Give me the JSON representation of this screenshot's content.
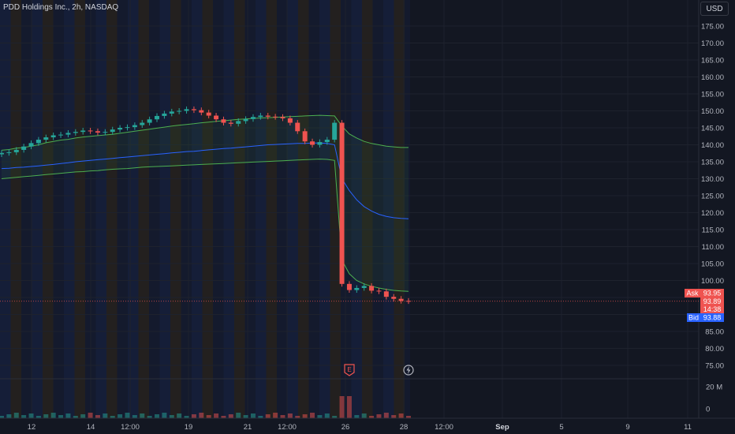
{
  "header": {
    "title": "PDD Holdings Inc., 2h, NASDAQ",
    "currency": "USD"
  },
  "price_tags": {
    "ask_label": "Ask",
    "ask_value": "93.95",
    "last_value": "93.89",
    "last_countdown": "14:38",
    "bid_label": "Bid",
    "bid_value": "93.88"
  },
  "markers": {
    "earnings_label": "E",
    "dividend_icon": "lightning-icon"
  },
  "colors": {
    "background": "#131722",
    "up": "#26a69a",
    "down": "#ef5350",
    "band_outer": "#4caf50",
    "band_mid": "#2962ff",
    "ask": "#ef5350",
    "bid": "#2962ff"
  },
  "chart_data": {
    "type": "candlestick",
    "symbol": "PDD Holdings Inc.",
    "interval": "2h",
    "exchange": "NASDAQ",
    "currency": "USD",
    "y_range": [
      70,
      180
    ],
    "y_ticks": [
      "175.00",
      "170.00",
      "165.00",
      "160.00",
      "155.00",
      "150.00",
      "145.00",
      "140.00",
      "135.00",
      "130.00",
      "125.00",
      "120.00",
      "115.00",
      "110.00",
      "105.00",
      "100.00",
      "95.00",
      "90.00",
      "85.00",
      "80.00",
      "75.00"
    ],
    "volume_ticks": [
      "20 M",
      "0"
    ],
    "x_ticks": [
      "12",
      "14",
      "12:00",
      "19",
      "21",
      "12:00",
      "26",
      "28",
      "12:00",
      "Sep",
      "5",
      "9",
      "11"
    ],
    "close_series": [
      137.6,
      137.8,
      138.5,
      139.5,
      140.5,
      141.5,
      142.2,
      142.8,
      143.0,
      143.5,
      143.8,
      144.2,
      144.0,
      143.6,
      143.8,
      144.5,
      145.0,
      145.2,
      145.8,
      146.5,
      147.5,
      148.5,
      149.2,
      149.8,
      150.0,
      150.5,
      150.2,
      149.5,
      148.6,
      147.5,
      146.5,
      146.2,
      147.0,
      147.6,
      148.2,
      148.6,
      148.3,
      148.2,
      147.8,
      146.5,
      144.0,
      141.0,
      140.0,
      140.8,
      141.5,
      146.5,
      99.0,
      97.2,
      97.8,
      98.4,
      97.0,
      96.8,
      95.2,
      94.6,
      94.0,
      93.9
    ],
    "upper_band": [
      138.4,
      138.6,
      139.0,
      139.2,
      139.6,
      140.0,
      140.6,
      141.0,
      141.4,
      141.6,
      142.0,
      142.3,
      142.5,
      142.7,
      142.9,
      143.1,
      143.4,
      143.7,
      144.0,
      144.3,
      144.6,
      144.9,
      145.2,
      145.5,
      145.8,
      146.0,
      146.2,
      146.5,
      146.7,
      146.9,
      147.1,
      147.3,
      147.5,
      147.6,
      147.8,
      147.9,
      148.0,
      148.1,
      148.2,
      148.3,
      148.4,
      148.5,
      148.6,
      148.7,
      148.6,
      148.5,
      145.5,
      143.2,
      142.0,
      141.0,
      140.4,
      140.0,
      139.6,
      139.4,
      139.2,
      139.2
    ],
    "middle_band": [
      133.0,
      133.1,
      133.3,
      133.4,
      133.6,
      133.8,
      134.0,
      134.2,
      134.5,
      134.7,
      135.0,
      135.2,
      135.4,
      135.6,
      135.8,
      136.0,
      136.2,
      136.4,
      136.6,
      136.8,
      137.0,
      137.2,
      137.4,
      137.6,
      137.8,
      138.0,
      138.1,
      138.3,
      138.5,
      138.7,
      138.9,
      139.0,
      139.2,
      139.4,
      139.6,
      139.8,
      140.0,
      140.1,
      140.2,
      140.3,
      140.4,
      140.4,
      140.5,
      140.5,
      140.4,
      140.0,
      130.0,
      126.5,
      123.8,
      121.8,
      120.5,
      119.5,
      118.9,
      118.5,
      118.3,
      118.2
    ],
    "lower_band": [
      130.0,
      130.2,
      130.4,
      130.6,
      130.8,
      131.0,
      131.2,
      131.4,
      131.6,
      131.8,
      132.0,
      132.1,
      132.3,
      132.4,
      132.6,
      132.8,
      132.9,
      133.0,
      133.2,
      133.4,
      133.5,
      133.6,
      133.7,
      133.8,
      133.9,
      134.0,
      134.1,
      134.2,
      134.3,
      134.4,
      134.5,
      134.6,
      134.7,
      134.8,
      134.9,
      135.0,
      135.1,
      135.2,
      135.3,
      135.4,
      135.5,
      135.6,
      135.7,
      135.8,
      135.7,
      135.4,
      106.0,
      102.0,
      100.0,
      99.0,
      98.3,
      97.8,
      97.4,
      97.1,
      96.9,
      96.8
    ],
    "last_price": 93.89,
    "ask": 93.95,
    "bid": 93.88
  }
}
